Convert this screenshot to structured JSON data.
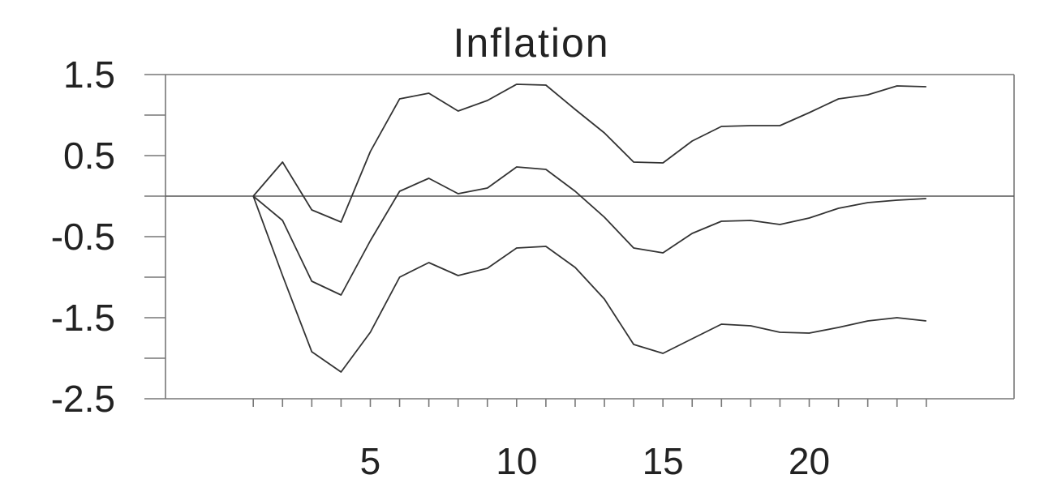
{
  "chart_data": {
    "type": "line",
    "title": "Inflation",
    "xlabel": "",
    "ylabel": "",
    "x": [
      1,
      2,
      3,
      4,
      5,
      6,
      7,
      8,
      9,
      10,
      11,
      12,
      13,
      14,
      15,
      16,
      17,
      18,
      19,
      20,
      21,
      22,
      23,
      24
    ],
    "xlim": [
      -2,
      27
    ],
    "ylim": [
      -2.5,
      1.5
    ],
    "x_ticks_labeled": [
      5,
      10,
      15,
      20
    ],
    "x_ticks_minor": [
      1,
      2,
      3,
      4,
      5,
      6,
      7,
      8,
      9,
      10,
      11,
      12,
      13,
      14,
      15,
      16,
      17,
      18,
      19,
      20,
      21,
      22,
      23,
      24
    ],
    "y_ticks_labeled": [
      1.5,
      0.5,
      -0.5,
      -1.5,
      -2.5
    ],
    "y_tick_labels": [
      "1.5",
      "0.5",
      "-0.5",
      "-1.5",
      "-2.5"
    ],
    "y_ticks_minor": [
      1.5,
      1.0,
      0.5,
      0.0,
      -0.5,
      -1.0,
      -1.5,
      -2.0,
      -2.5
    ],
    "zero_line": 0,
    "grid": false,
    "series": [
      {
        "values": [
          0.0,
          0.42,
          -0.17,
          -0.32,
          0.55,
          1.2,
          1.27,
          1.05,
          1.18,
          1.38,
          1.37,
          1.07,
          0.78,
          0.42,
          0.41,
          0.68,
          0.86,
          0.87,
          0.87,
          1.03,
          1.2,
          1.25,
          1.36,
          1.35
        ]
      },
      {
        "values": [
          0.0,
          -0.3,
          -1.05,
          -1.22,
          -0.55,
          0.06,
          0.22,
          0.03,
          0.1,
          0.36,
          0.33,
          0.06,
          -0.26,
          -0.64,
          -0.7,
          -0.46,
          -0.31,
          -0.3,
          -0.35,
          -0.27,
          -0.15,
          -0.08,
          -0.05,
          -0.03
        ]
      },
      {
        "values": [
          0.0,
          -0.98,
          -1.92,
          -2.17,
          -1.68,
          -1.0,
          -0.82,
          -0.98,
          -0.89,
          -0.64,
          -0.62,
          -0.88,
          -1.27,
          -1.83,
          -1.94,
          -1.76,
          -1.58,
          -1.6,
          -1.68,
          -1.69,
          -1.62,
          -1.54,
          -1.5,
          -1.54
        ]
      }
    ]
  }
}
